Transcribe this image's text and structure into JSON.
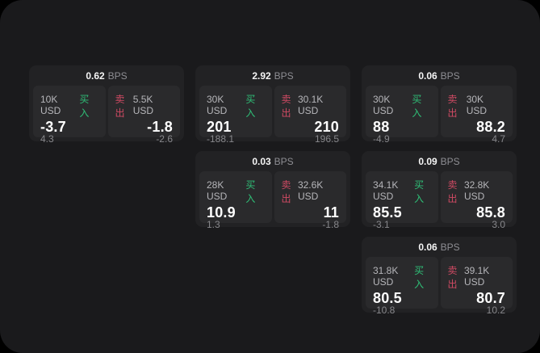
{
  "labels": {
    "bps_unit": "BPS",
    "buy": "买入",
    "sell": "卖出"
  },
  "colors": {
    "page_bg": "#000000",
    "window_bg": "#1a1a1c",
    "card_bg": "#222224",
    "pane_bg": "#2a2a2c",
    "buy_accent": "#2fbf77",
    "sell_accent": "#cf4a63",
    "price_text": "#ffffff",
    "muted_text": "#8e8e93"
  },
  "cards": [
    {
      "bps": "0.62",
      "buy": {
        "size": "10K USD",
        "price": "-3.7",
        "delta": "4.3"
      },
      "sell": {
        "size": "5.5K USD",
        "price": "-1.8",
        "delta": "-2.6"
      }
    },
    {
      "bps": "2.92",
      "buy": {
        "size": "30K USD",
        "price": "201",
        "delta": "-188.1"
      },
      "sell": {
        "size": "30.1K USD",
        "price": "210",
        "delta": "196.5"
      }
    },
    {
      "bps": "0.06",
      "buy": {
        "size": "30K USD",
        "price": "88",
        "delta": "-4.9"
      },
      "sell": {
        "size": "30K USD",
        "price": "88.2",
        "delta": "4.7"
      }
    },
    {
      "bps": "0.03",
      "buy": {
        "size": "28K USD",
        "price": "10.9",
        "delta": "1.3"
      },
      "sell": {
        "size": "32.6K USD",
        "price": "11",
        "delta": "-1.8"
      }
    },
    {
      "bps": "0.09",
      "buy": {
        "size": "34.1K USD",
        "price": "85.5",
        "delta": "-3.1"
      },
      "sell": {
        "size": "32.8K USD",
        "price": "85.8",
        "delta": "3.0"
      }
    },
    {
      "bps": "0.06",
      "buy": {
        "size": "31.8K USD",
        "price": "80.5",
        "delta": "-10.8"
      },
      "sell": {
        "size": "39.1K USD",
        "price": "80.7",
        "delta": "10.2"
      }
    }
  ]
}
